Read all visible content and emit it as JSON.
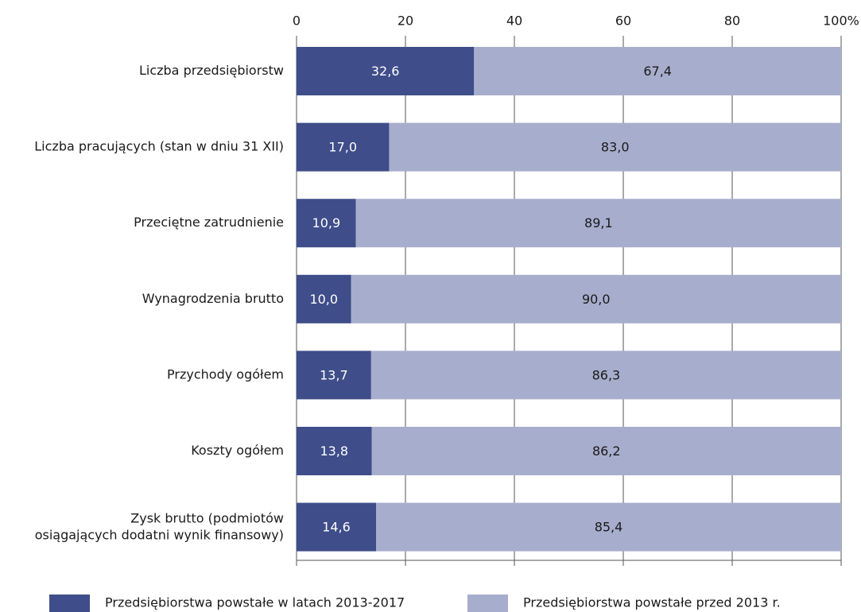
{
  "chart_data": {
    "type": "stacked-barh",
    "categories": [
      "Liczba przedsiębiorstw",
      "Liczba pracujących (stan w dniu 31 XII)",
      "Przeciętne zatrudnienie",
      "Wynagrodzenia brutto",
      "Przychody ogółem",
      "Koszty ogółem",
      "Zysk brutto (podmiotów\nosiągających dodatni wynik finansowy)"
    ],
    "series": [
      {
        "name": "Przedsiębiorstwa powstałe w latach 2013-2017",
        "color": "#3f4d8a",
        "values": [
          32.6,
          17.0,
          10.9,
          10.0,
          13.7,
          13.8,
          14.6
        ],
        "value_labels": [
          "32,6",
          "17,0",
          "10,9",
          "10,0",
          "13,7",
          "13,8",
          "14,6"
        ]
      },
      {
        "name": "Przedsiębiorstwa powstałe przed 2013 r.",
        "color": "#a7adcc",
        "values": [
          67.4,
          83.0,
          89.1,
          90.0,
          86.3,
          86.2,
          85.4
        ],
        "value_labels": [
          "67,4",
          "83,0",
          "89,1",
          "90,0",
          "86,3",
          "86,2",
          "85,4"
        ]
      }
    ],
    "xlim": [
      0,
      100
    ],
    "xticks": [
      0,
      20,
      40,
      60,
      80,
      {
        "value": 100,
        "label": "100%"
      }
    ],
    "grid": true
  }
}
